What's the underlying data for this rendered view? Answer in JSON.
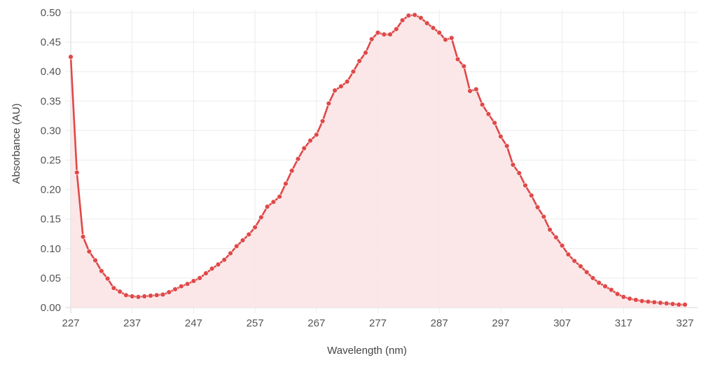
{
  "chart_data": {
    "type": "area",
    "title": "",
    "xlabel": "Wavelength (nm)",
    "ylabel": "Absorbance (AU)",
    "xlim": [
      227,
      327
    ],
    "ylim": [
      0,
      0.5
    ],
    "x_ticks": [
      227,
      237,
      247,
      257,
      267,
      277,
      287,
      297,
      307,
      317,
      327
    ],
    "y_ticks": [
      "0.00",
      "0.05",
      "0.10",
      "0.15",
      "0.20",
      "0.25",
      "0.30",
      "0.35",
      "0.40",
      "0.45",
      "0.50"
    ],
    "grid": true,
    "legend": "none",
    "colors": {
      "line": "#e04848",
      "fill": "#fbe4e6",
      "grid": "#ebebeb",
      "axis": "#d6d6d6"
    },
    "series": [
      {
        "x": [
          227,
          228,
          229,
          230,
          231,
          232,
          233,
          234,
          235,
          236,
          237,
          238,
          239,
          240,
          241,
          242,
          243,
          244,
          245,
          246,
          247,
          248,
          249,
          250,
          251,
          252,
          253,
          254,
          255,
          256,
          257,
          258,
          259,
          260,
          261,
          262,
          263,
          264,
          265,
          266,
          267,
          268,
          269,
          270,
          271,
          272,
          273,
          274,
          275,
          276,
          277,
          278,
          279,
          280,
          281,
          282,
          283,
          284,
          285,
          286,
          287,
          288,
          289,
          290,
          291,
          292,
          293,
          294,
          295,
          296,
          297,
          298,
          299,
          300,
          301,
          302,
          303,
          304,
          305,
          306,
          307,
          308,
          309,
          310,
          311,
          312,
          313,
          314,
          315,
          316,
          317,
          318,
          319,
          320,
          321,
          322,
          323,
          324,
          325,
          326,
          327
        ],
        "values": [
          0.425,
          0.229,
          0.12,
          0.095,
          0.08,
          0.062,
          0.049,
          0.033,
          0.027,
          0.021,
          0.019,
          0.018,
          0.019,
          0.02,
          0.021,
          0.022,
          0.026,
          0.031,
          0.036,
          0.04,
          0.045,
          0.05,
          0.058,
          0.066,
          0.073,
          0.081,
          0.092,
          0.104,
          0.114,
          0.124,
          0.136,
          0.153,
          0.171,
          0.179,
          0.188,
          0.21,
          0.232,
          0.252,
          0.27,
          0.283,
          0.293,
          0.316,
          0.346,
          0.368,
          0.375,
          0.383,
          0.4,
          0.418,
          0.432,
          0.455,
          0.466,
          0.463,
          0.463,
          0.472,
          0.487,
          0.495,
          0.496,
          0.491,
          0.482,
          0.474,
          0.466,
          0.454,
          0.457,
          0.421,
          0.409,
          0.367,
          0.37,
          0.344,
          0.328,
          0.313,
          0.29,
          0.274,
          0.242,
          0.228,
          0.207,
          0.19,
          0.17,
          0.154,
          0.132,
          0.119,
          0.105,
          0.09,
          0.079,
          0.07,
          0.06,
          0.05,
          0.042,
          0.036,
          0.03,
          0.023,
          0.018,
          0.015,
          0.013,
          0.011,
          0.01,
          0.009,
          0.008,
          0.007,
          0.006,
          0.005,
          0.005
        ]
      }
    ]
  }
}
